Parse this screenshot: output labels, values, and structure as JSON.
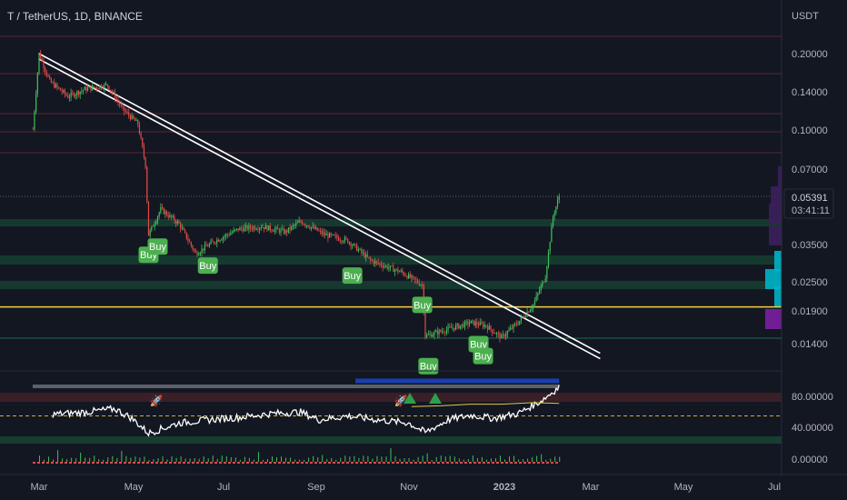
{
  "header": {
    "symbol_line": "T / TetherUS, 1D, BINANCE"
  },
  "price_axis": {
    "currency": "USDT",
    "ticks": [
      "0.20000",
      "0.14000",
      "0.10000",
      "0.07000",
      "0.05391",
      "0.03500",
      "0.02500",
      "0.01900",
      "0.01400"
    ],
    "current_price": "0.05391",
    "countdown": "03:41:11"
  },
  "indicator_axis": {
    "ticks": [
      "80.00000",
      "40.00000",
      "0.00000"
    ]
  },
  "time_axis": {
    "labels": [
      "Mar",
      "May",
      "Jul",
      "Sep",
      "Nov",
      "2023",
      "Mar",
      "May",
      "Jul"
    ]
  },
  "colors": {
    "background": "#131722",
    "up": "#26a69a",
    "down": "#ef5350",
    "trendline": "#ffffff",
    "support_line": "#f7d046",
    "signal_badge": "#4caf50",
    "zone_green": "#1e4d3a",
    "zone_red": "#4a1f2a"
  },
  "signals": {
    "buy_label": "Buy"
  },
  "icons": [
    "rocket-icon",
    "triangle-up-icon"
  ],
  "chart_data": {
    "type": "candlestick",
    "title": "T / TetherUS, 1D, BINANCE",
    "y_scale": "log",
    "y_unit": "USDT",
    "x_range": [
      "2022-02",
      "2023-07"
    ],
    "y_range": [
      0.0115,
      0.25
    ],
    "price_path": [
      [
        "2022-02-25",
        0.1
      ],
      [
        "2022-03-01",
        0.2
      ],
      [
        "2022-03-08",
        0.155
      ],
      [
        "2022-03-20",
        0.135
      ],
      [
        "2022-04-01",
        0.145
      ],
      [
        "2022-04-15",
        0.15
      ],
      [
        "2022-04-25",
        0.12
      ],
      [
        "2022-05-05",
        0.105
      ],
      [
        "2022-05-10",
        0.072
      ],
      [
        "2022-05-12",
        0.038
      ],
      [
        "2022-05-20",
        0.048
      ],
      [
        "2022-06-01",
        0.042
      ],
      [
        "2022-06-12",
        0.032
      ],
      [
        "2022-06-25",
        0.036
      ],
      [
        "2022-07-10",
        0.04
      ],
      [
        "2022-07-25",
        0.041
      ],
      [
        "2022-08-10",
        0.039
      ],
      [
        "2022-08-20",
        0.043
      ],
      [
        "2022-09-05",
        0.038
      ],
      [
        "2022-09-20",
        0.036
      ],
      [
        "2022-10-05",
        0.03
      ],
      [
        "2022-10-25",
        0.027
      ],
      [
        "2022-11-08",
        0.024
      ],
      [
        "2022-11-10",
        0.015
      ],
      [
        "2022-11-25",
        0.016
      ],
      [
        "2022-12-10",
        0.017
      ],
      [
        "2022-12-20",
        0.0165
      ],
      [
        "2022-12-30",
        0.0148
      ],
      [
        "2023-01-10",
        0.017
      ],
      [
        "2023-01-20",
        0.02
      ],
      [
        "2023-01-28",
        0.026
      ],
      [
        "2023-02-02",
        0.045
      ],
      [
        "2023-02-06",
        0.054
      ]
    ],
    "trendline": [
      [
        "2022-03-01",
        0.195
      ],
      [
        "2023-03-05",
        0.0125
      ]
    ],
    "support_line": 0.0196,
    "buy_signals": [
      "2022-05-12",
      "2022-05-18",
      "2022-06-20",
      "2022-09-23",
      "2022-11-08",
      "2022-11-12",
      "2022-12-15",
      "2022-12-18"
    ],
    "indicator": {
      "ticks": [
        80,
        40,
        0
      ],
      "path": [
        [
          "2022-03-10",
          57
        ],
        [
          "2022-04-01",
          60
        ],
        [
          "2022-04-20",
          64
        ],
        [
          "2022-05-01",
          52
        ],
        [
          "2022-05-12",
          33
        ],
        [
          "2022-06-01",
          46
        ],
        [
          "2022-06-20",
          50
        ],
        [
          "2022-07-10",
          53
        ],
        [
          "2022-08-01",
          58
        ],
        [
          "2022-08-20",
          60
        ],
        [
          "2022-09-01",
          50
        ],
        [
          "2022-09-20",
          55
        ],
        [
          "2022-10-10",
          50
        ],
        [
          "2022-10-30",
          46
        ],
        [
          "2022-11-10",
          34
        ],
        [
          "2022-11-25",
          50
        ],
        [
          "2022-12-10",
          56
        ],
        [
          "2022-12-25",
          52
        ],
        [
          "2023-01-10",
          58
        ],
        [
          "2023-01-25",
          74
        ],
        [
          "2023-02-06",
          92
        ]
      ],
      "signal_path": [
        [
          "2022-11-01",
          67
        ],
        [
          "2022-11-20",
          68
        ],
        [
          "2022-12-10",
          70
        ],
        [
          "2022-12-30",
          70
        ],
        [
          "2023-01-20",
          72
        ],
        [
          "2023-02-06",
          71
        ]
      ]
    }
  }
}
